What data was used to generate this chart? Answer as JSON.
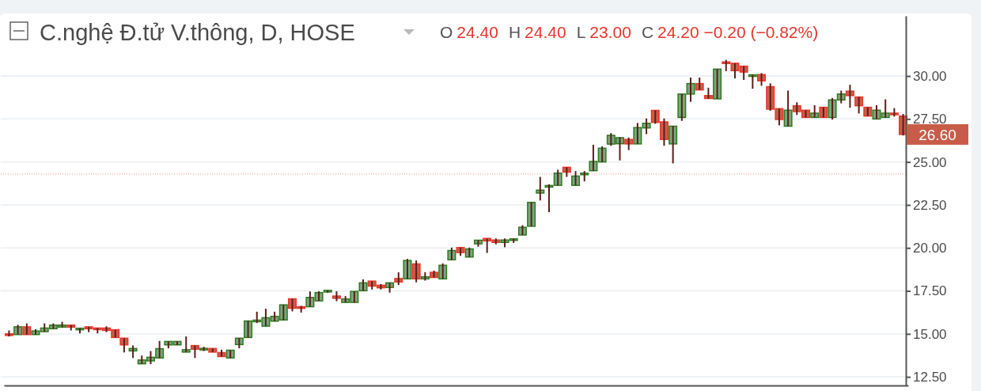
{
  "chart_data": {
    "type": "candlestick",
    "title": "C.nghệ Đ.tử V.thông, D, HOSE",
    "annotations": [
      "O 24.40",
      "H 24.40",
      "L 23.00",
      "C 24.20 −0.20 (−0.82%)",
      "26.60"
    ],
    "categories": [
      null,
      null,
      null,
      null,
      null,
      null,
      null,
      null,
      null,
      null,
      null,
      null,
      null,
      null,
      null,
      null,
      null,
      null,
      null,
      null,
      null,
      null,
      null,
      null,
      null,
      null,
      null,
      null,
      null,
      null,
      null,
      null,
      null,
      null,
      null,
      null,
      null,
      null,
      null,
      null,
      null,
      null,
      null,
      null,
      null,
      null,
      null,
      null,
      null,
      null,
      null,
      null,
      null,
      null,
      null,
      null,
      null,
      null,
      null,
      null,
      null,
      null,
      null,
      null,
      null,
      null,
      null,
      null,
      null,
      null,
      null,
      null,
      null,
      null,
      null,
      null,
      null,
      null,
      null,
      null,
      null,
      null,
      null,
      null,
      null,
      null,
      null,
      null,
      null,
      null,
      null,
      null,
      null,
      null,
      null,
      null,
      null,
      null,
      null,
      null,
      null,
      null
    ],
    "ohlc": [
      [
        15.0,
        15.2,
        14.85,
        14.95
      ],
      [
        14.96,
        15.53,
        14.96,
        15.41
      ],
      [
        15.41,
        15.61,
        14.96,
        14.96
      ],
      [
        14.96,
        15.27,
        14.96,
        15.17
      ],
      [
        15.13,
        15.61,
        15.13,
        15.34
      ],
      [
        15.3,
        15.61,
        15.3,
        15.51
      ],
      [
        15.39,
        15.7,
        15.39,
        15.51
      ],
      [
        15.51,
        15.51,
        15.2,
        15.39
      ],
      [
        15.3,
        15.33,
        15.03,
        15.33
      ],
      [
        15.41,
        15.41,
        15.1,
        15.3
      ],
      [
        15.34,
        15.34,
        15.03,
        15.29
      ],
      [
        15.34,
        15.44,
        15.1,
        15.2
      ],
      [
        15.24,
        15.24,
        14.79,
        14.79
      ],
      [
        14.75,
        14.75,
        13.92,
        14.36
      ],
      [
        14.01,
        14.33,
        13.6,
        14.15
      ],
      [
        13.26,
        13.74,
        13.26,
        13.48
      ],
      [
        13.43,
        14.0,
        13.24,
        13.64
      ],
      [
        13.6,
        14.59,
        13.6,
        14.14
      ],
      [
        14.36,
        14.56,
        14.16,
        14.56
      ],
      [
        14.36,
        14.56,
        14.36,
        14.56
      ],
      [
        13.94,
        14.85,
        13.94,
        14.08
      ],
      [
        14.32,
        14.32,
        13.6,
        14.11
      ],
      [
        14.08,
        14.25,
        14.0,
        14.16
      ],
      [
        14.15,
        14.15,
        13.94,
        13.94
      ],
      [
        13.91,
        14.08,
        13.68,
        13.68
      ],
      [
        13.6,
        14.05,
        13.6,
        14.05
      ],
      [
        14.38,
        14.75,
        14.16,
        14.75
      ],
      [
        14.79,
        15.75,
        14.79,
        15.75
      ],
      [
        15.72,
        16.29,
        15.63,
        15.8
      ],
      [
        15.45,
        16.46,
        15.45,
        15.94
      ],
      [
        15.74,
        16.29,
        15.74,
        16.02
      ],
      [
        15.81,
        16.69,
        15.81,
        16.69
      ],
      [
        17.04,
        17.04,
        16.31,
        16.49
      ],
      [
        16.58,
        16.63,
        16.24,
        16.53
      ],
      [
        16.58,
        17.47,
        16.58,
        17.12
      ],
      [
        16.92,
        17.48,
        16.92,
        17.4
      ],
      [
        17.47,
        17.53,
        17.4,
        17.53
      ],
      [
        17.2,
        17.48,
        16.9,
        17.07
      ],
      [
        16.83,
        17.2,
        16.83,
        17.03
      ],
      [
        16.83,
        17.47,
        16.83,
        17.47
      ],
      [
        17.51,
        18.17,
        17.51,
        17.97
      ],
      [
        18.07,
        18.07,
        17.58,
        17.78
      ],
      [
        17.83,
        17.9,
        17.58,
        17.68
      ],
      [
        17.7,
        17.97,
        17.4,
        17.97
      ],
      [
        18.22,
        18.58,
        17.85,
        18.02
      ],
      [
        18.2,
        19.36,
        18.2,
        19.27
      ],
      [
        19.07,
        19.27,
        18.0,
        18.2
      ],
      [
        18.2,
        18.59,
        18.1,
        18.32
      ],
      [
        18.58,
        18.68,
        18.28,
        18.28
      ],
      [
        18.2,
        19.1,
        18.2,
        18.99
      ],
      [
        19.31,
        20.02,
        19.31,
        19.85
      ],
      [
        20.02,
        20.02,
        19.54,
        19.73
      ],
      [
        19.47,
        20.02,
        19.47,
        19.94
      ],
      [
        20.24,
        20.45,
        20.07,
        20.45
      ],
      [
        20.55,
        20.55,
        19.71,
        20.41
      ],
      [
        20.46,
        20.55,
        20.21,
        20.32
      ],
      [
        20.32,
        20.55,
        20.04,
        20.46
      ],
      [
        20.5,
        20.53,
        20.29,
        20.53
      ],
      [
        20.75,
        21.32,
        20.75,
        21.2
      ],
      [
        21.26,
        22.65,
        21.26,
        22.65
      ],
      [
        23.19,
        24.13,
        22.76,
        23.36
      ],
      [
        23.57,
        23.7,
        22.08,
        23.63
      ],
      [
        23.64,
        24.55,
        23.64,
        24.35
      ],
      [
        24.69,
        24.69,
        24.13,
        24.41
      ],
      [
        23.64,
        24.47,
        23.64,
        24.18
      ],
      [
        24.31,
        24.47,
        23.87,
        24.35
      ],
      [
        24.49,
        26.0,
        24.49,
        25.03
      ],
      [
        25.0,
        25.91,
        25.0,
        25.8
      ],
      [
        26.04,
        26.68,
        25.94,
        26.55
      ],
      [
        26.06,
        26.45,
        25.09,
        26.41
      ],
      [
        26.31,
        26.42,
        25.69,
        26.05
      ],
      [
        26.05,
        27.27,
        26.05,
        27.0
      ],
      [
        26.98,
        27.53,
        26.62,
        27.25
      ],
      [
        28.0,
        28.0,
        27.22,
        27.3
      ],
      [
        27.33,
        27.53,
        25.94,
        26.31
      ],
      [
        26.05,
        27.08,
        24.92,
        27.08
      ],
      [
        27.59,
        28.95,
        27.39,
        28.95
      ],
      [
        28.95,
        29.91,
        28.5,
        29.56
      ],
      [
        29.56,
        29.91,
        29.19,
        29.19
      ],
      [
        28.86,
        29.32,
        28.69,
        28.69
      ],
      [
        28.67,
        30.4,
        28.67,
        30.4
      ],
      [
        30.82,
        30.94,
        30.28,
        30.74
      ],
      [
        30.74,
        30.74,
        29.86,
        30.31
      ],
      [
        30.57,
        30.57,
        29.77,
        30.23
      ],
      [
        30.0,
        30.07,
        29.26,
        30.07
      ],
      [
        30.08,
        30.17,
        29.43,
        29.72
      ],
      [
        29.38,
        29.57,
        27.98,
        28.07
      ],
      [
        28.1,
        28.1,
        27.13,
        27.47
      ],
      [
        27.08,
        29.15,
        27.08,
        28.01
      ],
      [
        28.27,
        28.47,
        27.73,
        27.93
      ],
      [
        28.01,
        28.01,
        27.59,
        27.59
      ],
      [
        27.59,
        28.3,
        27.59,
        27.84
      ],
      [
        28.18,
        28.18,
        27.59,
        27.59
      ],
      [
        27.59,
        28.72,
        27.47,
        28.61
      ],
      [
        28.61,
        29.15,
        28.41,
        28.95
      ],
      [
        29.12,
        29.49,
        28.15,
        28.86
      ],
      [
        28.78,
        28.78,
        27.82,
        28.27
      ],
      [
        28.18,
        28.18,
        27.67,
        27.67
      ],
      [
        27.5,
        28.3,
        27.5,
        28.01
      ],
      [
        27.59,
        28.64,
        27.59,
        27.84
      ],
      [
        27.84,
        28.13,
        27.64,
        27.76
      ],
      [
        27.67,
        27.79,
        26.54,
        26.6
      ]
    ],
    "ylim": [
      12,
      33.5
    ],
    "yticks": [
      {
        "value": 12.5,
        "label": "12.50"
      },
      {
        "value": 15,
        "label": "15.00"
      },
      {
        "value": 17.5,
        "label": "17.50"
      },
      {
        "value": 20,
        "label": "20.00"
      },
      {
        "value": 22.5,
        "label": "22.50"
      },
      {
        "value": 25,
        "label": "25.00"
      },
      {
        "value": 27.5,
        "label": "27.50"
      },
      {
        "value": 30,
        "label": "30.00"
      }
    ],
    "grid": "y",
    "tick_labels": "y",
    "ref_lines": [
      {
        "axis": "y",
        "value": 24.3,
        "color": "#e89a96",
        "line_style": "dotted"
      }
    ]
  }
}
